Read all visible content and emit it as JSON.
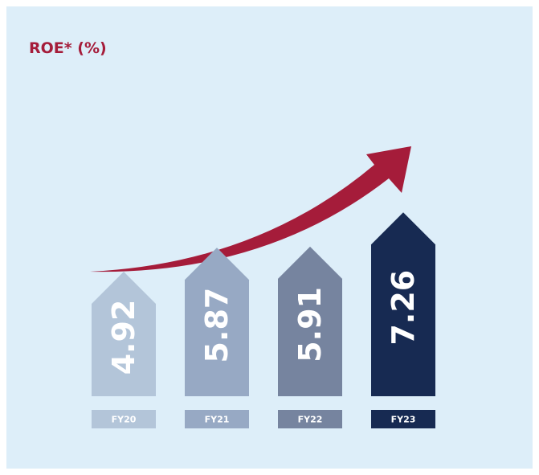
{
  "chart_data": {
    "type": "arrow-bar",
    "title": "ROE* (%)",
    "categories": [
      "FY20",
      "FY21",
      "FY22",
      "FY23"
    ],
    "values": [
      4.92,
      5.87,
      5.91,
      7.26
    ],
    "colors": [
      "#b3c5d9",
      "#97a9c4",
      "#76849f",
      "#172a52"
    ]
  }
}
